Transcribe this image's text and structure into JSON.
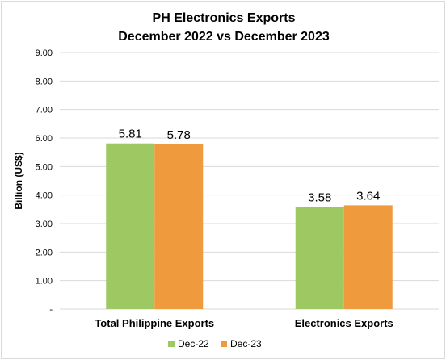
{
  "chart_data": {
    "type": "bar",
    "title": [
      "PH Electronics Exports",
      "December 2022 vs December 2023"
    ],
    "ylabel": "Billion (US$)",
    "xlabel": "",
    "categories": [
      "Total Philippine Exports",
      "Electronics Exports"
    ],
    "series": [
      {
        "name": "Dec-22",
        "values": [
          5.81,
          3.58
        ],
        "color": "#9dc862"
      },
      {
        "name": "Dec-23",
        "values": [
          5.78,
          3.64
        ],
        "color": "#f09a3e"
      }
    ],
    "data_labels": [
      [
        "5.81",
        "3.58"
      ],
      [
        "5.78",
        "3.64"
      ]
    ],
    "ylim": [
      0,
      9
    ],
    "y_ticks": [
      "-",
      "1.00",
      "2.00",
      "3.00",
      "4.00",
      "5.00",
      "6.00",
      "7.00",
      "8.00",
      "9.00"
    ],
    "grid": true,
    "legend": "bottom",
    "grid_color": "#d9d9d9"
  }
}
